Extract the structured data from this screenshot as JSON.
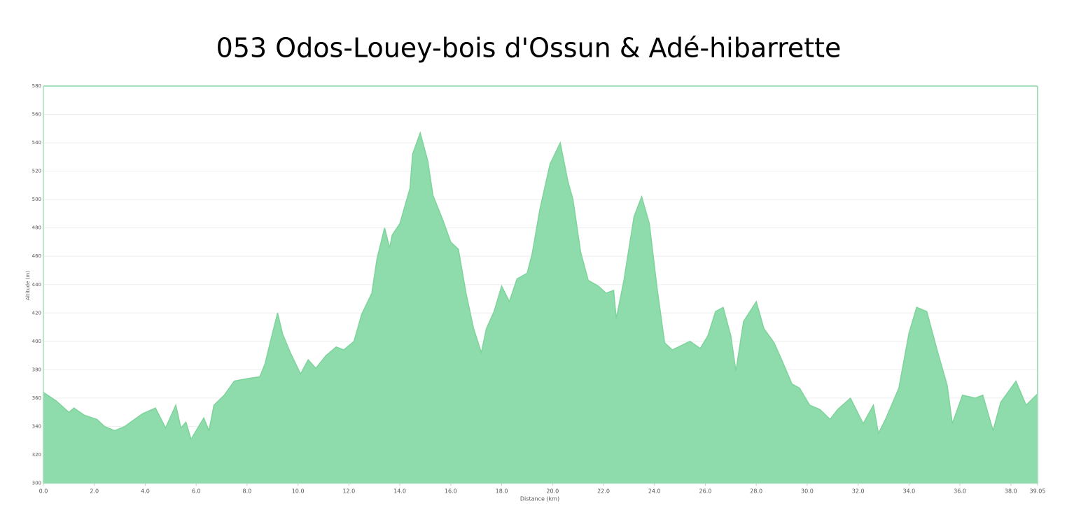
{
  "chart_data": {
    "type": "area",
    "title": "053 Odos-Louey-bois d'Ossun & Adé-hibarrette",
    "xlabel": "Distance   (km)",
    "ylabel": "Altitude (m)",
    "color": "#8edbab",
    "line_color": "#7fd39c",
    "grid": true,
    "x": [
      0,
      0.5,
      1.0,
      1.2,
      1.6,
      2.1,
      2.4,
      2.8,
      3.2,
      3.5,
      3.9,
      4.4,
      4.8,
      5.2,
      5.4,
      5.6,
      5.8,
      6.1,
      6.3,
      6.5,
      6.7,
      7.1,
      7.5,
      8.1,
      8.5,
      8.7,
      9.0,
      9.2,
      9.4,
      9.7,
      10.1,
      10.4,
      10.7,
      11.1,
      11.5,
      11.8,
      12.2,
      12.5,
      12.9,
      13.1,
      13.4,
      13.6,
      13.7,
      14.0,
      14.4,
      14.5,
      14.8,
      15.1,
      15.3,
      15.7,
      16.0,
      16.3,
      16.6,
      16.9,
      17.2,
      17.4,
      17.7,
      18.0,
      18.3,
      18.6,
      19.0,
      19.2,
      19.5,
      19.9,
      20.3,
      20.6,
      20.8,
      21.1,
      21.4,
      21.8,
      22.1,
      22.4,
      22.5,
      22.8,
      23.2,
      23.5,
      23.8,
      24.1,
      24.4,
      24.7,
      25.4,
      25.8,
      26.1,
      26.4,
      26.7,
      27.0,
      27.2,
      27.5,
      28.0,
      28.3,
      28.7,
      29.0,
      29.4,
      29.7,
      30.1,
      30.5,
      30.9,
      31.2,
      31.7,
      32.2,
      32.6,
      32.8,
      33.1,
      33.6,
      34.0,
      34.3,
      34.7,
      35.1,
      35.5,
      35.7,
      36.1,
      36.6,
      36.9,
      37.3,
      37.6,
      38.2,
      38.6,
      39.05
    ],
    "values": [
      364,
      358,
      350,
      353,
      348,
      345,
      340,
      337,
      340,
      344,
      349,
      353,
      339,
      355,
      339,
      343,
      331,
      340,
      346,
      337,
      355,
      362,
      372,
      374,
      375,
      384,
      406,
      420,
      405,
      392,
      377,
      387,
      381,
      390,
      396,
      394,
      400,
      419,
      434,
      458,
      480,
      466,
      475,
      483,
      508,
      532,
      547,
      527,
      503,
      485,
      470,
      465,
      434,
      409,
      392,
      409,
      421,
      439,
      428,
      444,
      448,
      462,
      493,
      525,
      540,
      513,
      500,
      463,
      443,
      439,
      434,
      436,
      416,
      443,
      488,
      502,
      483,
      438,
      399,
      394,
      400,
      395,
      404,
      421,
      424,
      404,
      379,
      414,
      428,
      409,
      399,
      387,
      370,
      367,
      355,
      352,
      345,
      352,
      360,
      342,
      355,
      335,
      346,
      367,
      406,
      424,
      421,
      394,
      369,
      342,
      362,
      360,
      362,
      337,
      357,
      372,
      355,
      363
    ],
    "xlim": [
      0,
      39.05
    ],
    "ylim": [
      300,
      580
    ],
    "xticks": [
      {
        "value": 0,
        "label": "0.0"
      },
      {
        "value": 2,
        "label": "2.0"
      },
      {
        "value": 4,
        "label": "4.0"
      },
      {
        "value": 6,
        "label": "6.0"
      },
      {
        "value": 8,
        "label": "8.0"
      },
      {
        "value": 10,
        "label": "10.0"
      },
      {
        "value": 12,
        "label": "12.0"
      },
      {
        "value": 14,
        "label": "14.0"
      },
      {
        "value": 16,
        "label": "16.0"
      },
      {
        "value": 18,
        "label": "18.0"
      },
      {
        "value": 20,
        "label": "20.0"
      },
      {
        "value": 22,
        "label": "22.0"
      },
      {
        "value": 24,
        "label": "24.0"
      },
      {
        "value": 26,
        "label": "26.0"
      },
      {
        "value": 28,
        "label": "28.0"
      },
      {
        "value": 30,
        "label": "30.0"
      },
      {
        "value": 32,
        "label": "32.0"
      },
      {
        "value": 34,
        "label": "34.0"
      },
      {
        "value": 36,
        "label": "36.0"
      },
      {
        "value": 38,
        "label": "38.0"
      },
      39.05
    ],
    "yticks": [
      300,
      320,
      340,
      360,
      380,
      400,
      420,
      440,
      460,
      480,
      500,
      520,
      540,
      560,
      580
    ]
  }
}
